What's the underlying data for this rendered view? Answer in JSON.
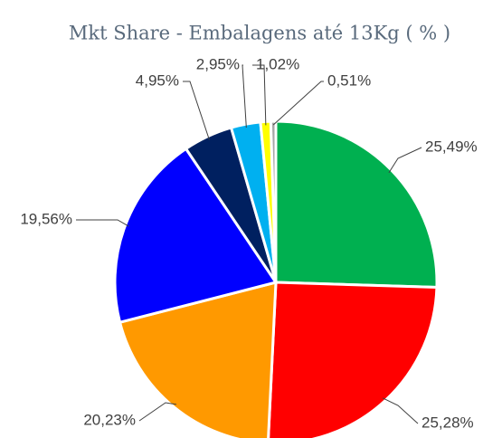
{
  "chart_data": {
    "type": "pie",
    "title": "Mkt Share - Embalagens até 13Kg ( % )",
    "values": [
      25.49,
      25.28,
      20.23,
      19.56,
      4.95,
      2.95,
      1.02,
      0.51
    ],
    "value_labels": [
      "25,49%",
      "25,28%",
      "20,23%",
      "19,56%",
      "4,95%",
      "2,95%",
      "1,02%",
      "0,51%"
    ],
    "colors": [
      "#00b050",
      "#ff0000",
      "#ff9900",
      "#0000ff",
      "#002060",
      "#00b0f0",
      "#ffff00",
      "#a6a6a6"
    ]
  }
}
